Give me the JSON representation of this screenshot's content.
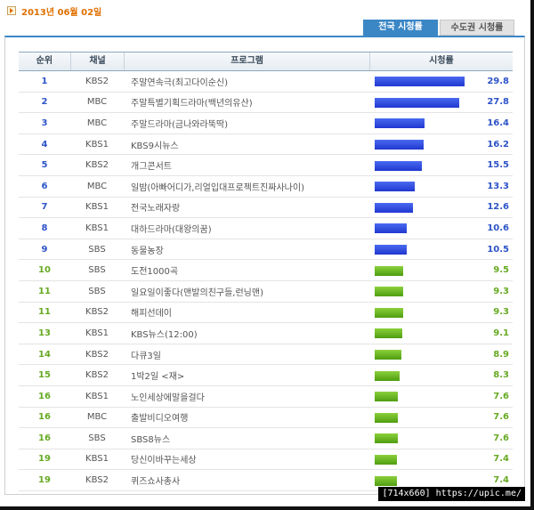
{
  "header": {
    "date": "2013년 06월 02일"
  },
  "tabs": [
    {
      "label": "전국 시청률",
      "active": true
    },
    {
      "label": "수도권 시청률",
      "active": false
    }
  ],
  "table": {
    "columns": {
      "rank": "순위",
      "channel": "채널",
      "program": "프로그램",
      "rating": "시청률"
    },
    "max_rating": 30,
    "rows": [
      {
        "rank": "1",
        "channel": "KBS2",
        "program": "주말연속극(최고다이순신)",
        "rating": "29.8",
        "value": 29.8,
        "color": "blue"
      },
      {
        "rank": "2",
        "channel": "MBC",
        "program": "주말특별기획드라마(백년의유산)",
        "rating": "27.8",
        "value": 27.8,
        "color": "blue"
      },
      {
        "rank": "3",
        "channel": "MBC",
        "program": "주말드라마(금나와라뚝딱)",
        "rating": "16.4",
        "value": 16.4,
        "color": "blue"
      },
      {
        "rank": "4",
        "channel": "KBS1",
        "program": "KBS9시뉴스",
        "rating": "16.2",
        "value": 16.2,
        "color": "blue"
      },
      {
        "rank": "5",
        "channel": "KBS2",
        "program": "개그콘서트",
        "rating": "15.5",
        "value": 15.5,
        "color": "blue"
      },
      {
        "rank": "6",
        "channel": "MBC",
        "program": "일밤(아빠어디가,리얼입대프로젝트진짜사나이)",
        "rating": "13.3",
        "value": 13.3,
        "color": "blue"
      },
      {
        "rank": "7",
        "channel": "KBS1",
        "program": "전국노래자랑",
        "rating": "12.6",
        "value": 12.6,
        "color": "blue"
      },
      {
        "rank": "8",
        "channel": "KBS1",
        "program": "대하드라마(대왕의꿈)",
        "rating": "10.6",
        "value": 10.6,
        "color": "blue"
      },
      {
        "rank": "9",
        "channel": "SBS",
        "program": "동물농장",
        "rating": "10.5",
        "value": 10.5,
        "color": "blue"
      },
      {
        "rank": "10",
        "channel": "SBS",
        "program": "도전1000곡",
        "rating": "9.5",
        "value": 9.5,
        "color": "green"
      },
      {
        "rank": "11",
        "channel": "SBS",
        "program": "일요일이좋다(맨발의친구들,런닝맨)",
        "rating": "9.3",
        "value": 9.3,
        "color": "green"
      },
      {
        "rank": "11",
        "channel": "KBS2",
        "program": "해피선데이",
        "rating": "9.3",
        "value": 9.3,
        "color": "green"
      },
      {
        "rank": "13",
        "channel": "KBS1",
        "program": "KBS뉴스(12:00)",
        "rating": "9.1",
        "value": 9.1,
        "color": "green"
      },
      {
        "rank": "14",
        "channel": "KBS2",
        "program": "다큐3일",
        "rating": "8.9",
        "value": 8.9,
        "color": "green"
      },
      {
        "rank": "15",
        "channel": "KBS2",
        "program": "1박2일 <재>",
        "rating": "8.3",
        "value": 8.3,
        "color": "green"
      },
      {
        "rank": "16",
        "channel": "KBS1",
        "program": "노인세상에말을걸다",
        "rating": "7.6",
        "value": 7.6,
        "color": "green"
      },
      {
        "rank": "16",
        "channel": "MBC",
        "program": "출발비디오여행",
        "rating": "7.6",
        "value": 7.6,
        "color": "green"
      },
      {
        "rank": "16",
        "channel": "SBS",
        "program": "SBS8뉴스",
        "rating": "7.6",
        "value": 7.6,
        "color": "green"
      },
      {
        "rank": "19",
        "channel": "KBS1",
        "program": "당신이바꾸는세상",
        "rating": "7.4",
        "value": 7.4,
        "color": "green"
      },
      {
        "rank": "19",
        "channel": "KBS2",
        "program": "퀴즈쇼사총사",
        "rating": "7.4",
        "value": 7.4,
        "color": "green"
      }
    ]
  },
  "watermark": "[714x660] https://upic.me/"
}
